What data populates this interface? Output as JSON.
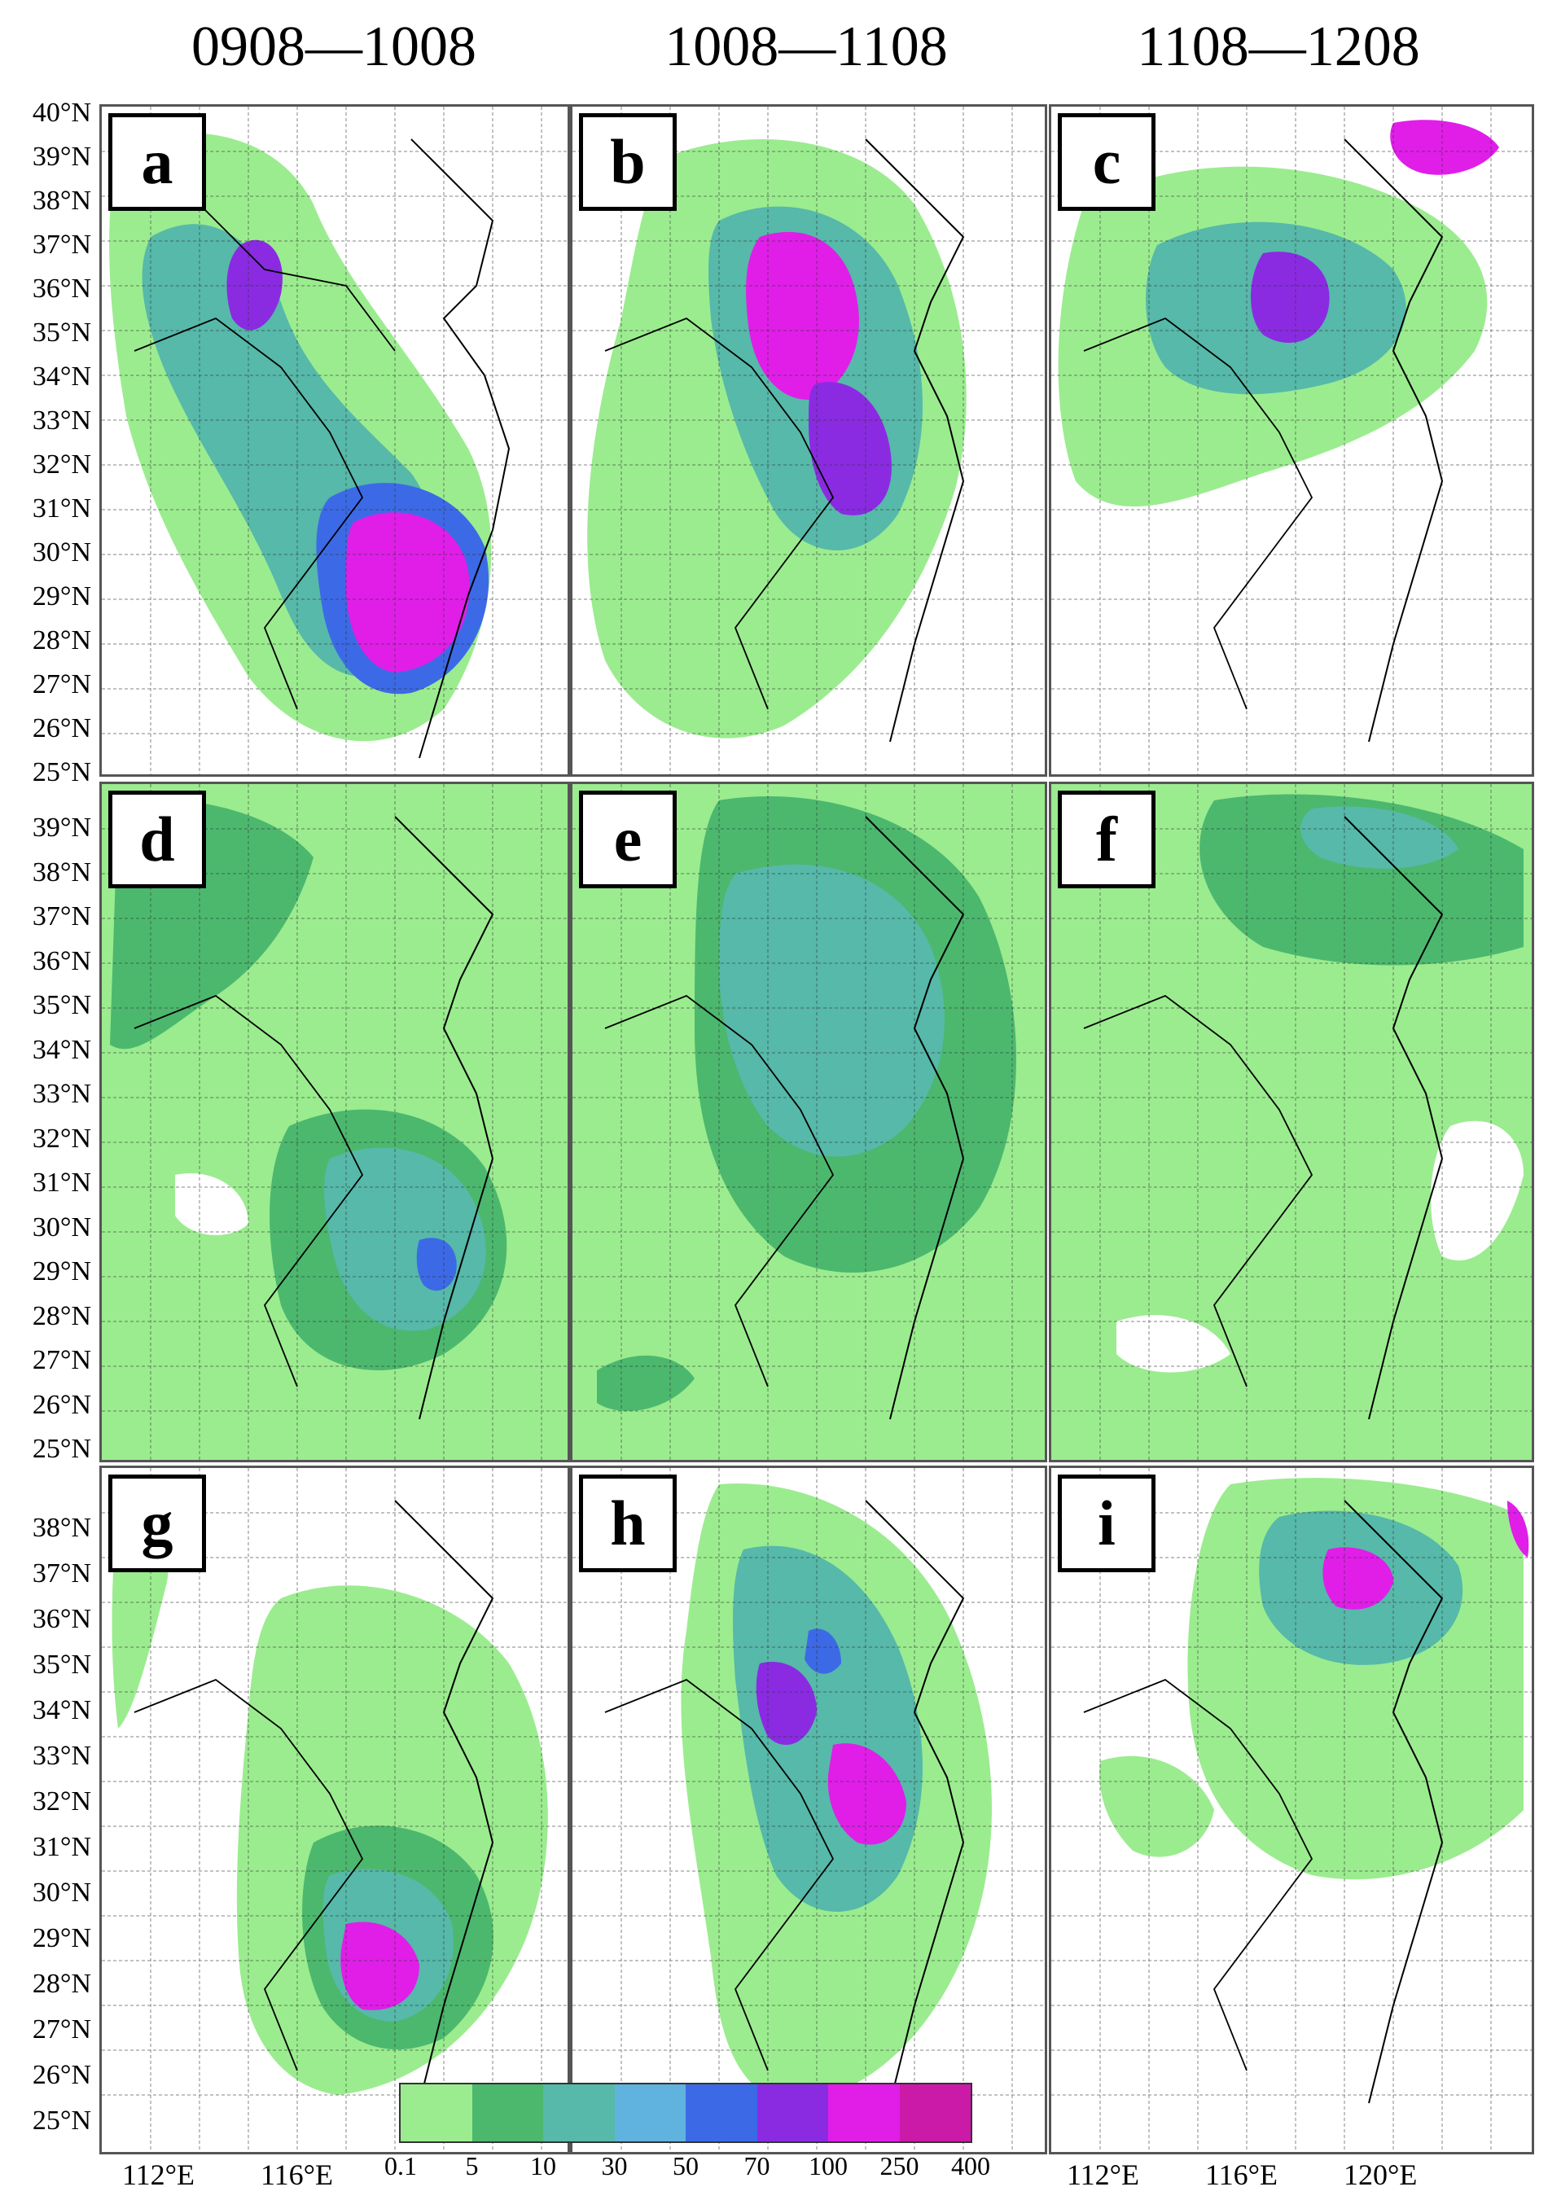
{
  "columns": [
    "0908—1008",
    "1008—1108",
    "1108—1208"
  ],
  "panels": [
    {
      "label": "a"
    },
    {
      "label": "b"
    },
    {
      "label": "c"
    },
    {
      "label": "d"
    },
    {
      "label": "e"
    },
    {
      "label": "f"
    },
    {
      "label": "g"
    },
    {
      "label": "h"
    },
    {
      "label": "i"
    }
  ],
  "lat_row1": [
    "40°N",
    "39°N",
    "38°N",
    "37°N",
    "36°N",
    "35°N",
    "34°N",
    "33°N",
    "32°N",
    "31°N",
    "30°N",
    "29°N",
    "28°N",
    "27°N",
    "26°N",
    "25°N"
  ],
  "lat_row2": [
    "39°N",
    "38°N",
    "37°N",
    "36°N",
    "35°N",
    "34°N",
    "33°N",
    "32°N",
    "31°N",
    "30°N",
    "29°N",
    "28°N",
    "27°N",
    "26°N",
    "25°N"
  ],
  "lat_row3": [
    "38°N",
    "37°N",
    "36°N",
    "35°N",
    "34°N",
    "33°N",
    "32°N",
    "31°N",
    "30°N",
    "29°N",
    "28°N",
    "27°N",
    "26°N",
    "25°N"
  ],
  "lon_labels_left": [
    "112°E",
    "116°E"
  ],
  "lon_labels_right": [
    "112°E",
    "116°E",
    "120°E"
  ],
  "legend": {
    "ticks": [
      "0.1",
      "5",
      "10",
      "30",
      "50",
      "70",
      "100",
      "250",
      "400"
    ],
    "colors": [
      "#9bec8f",
      "#4cb86e",
      "#56b9a9",
      "#5fb3de",
      "#3c6ae6",
      "#8a2be2",
      "#e01ee8",
      "#cc1aa8"
    ]
  }
}
